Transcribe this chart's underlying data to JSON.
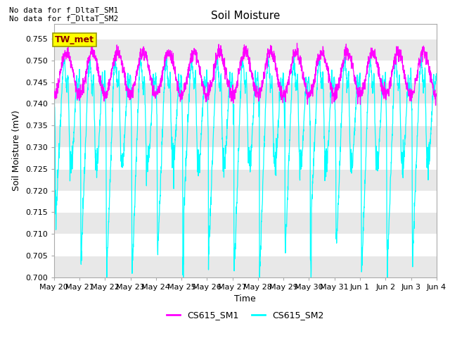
{
  "title": "Soil Moisture",
  "ylabel": "Soil Moisture (mV)",
  "xlabel": "Time",
  "ylim": [
    0.7,
    0.7585
  ],
  "yticks": [
    0.7,
    0.705,
    0.71,
    0.715,
    0.72,
    0.725,
    0.73,
    0.735,
    0.74,
    0.745,
    0.75,
    0.755
  ],
  "color_sm1": "#FF00FF",
  "color_sm2": "#00FFFF",
  "legend_labels": [
    "CS615_SM1",
    "CS615_SM2"
  ],
  "no_data_text1": "No data for f_DltaT_SM1",
  "no_data_text2": "No data for f_DltaT_SM2",
  "tw_met_label": "TW_met",
  "fig_bg": "#FFFFFF",
  "plot_bg": "#FFFFFF",
  "band_color": "#E8E8E8",
  "xtick_labels": [
    "May 20",
    "May 21",
    "May 22",
    "May 23",
    "May 24",
    "May 25",
    "May 26",
    "May 27",
    "May 28",
    "May 29",
    "May 30",
    "May 31",
    "Jun 1",
    "Jun 2",
    "Jun 3",
    "Jun 4"
  ],
  "title_fontsize": 11,
  "label_fontsize": 9,
  "tick_fontsize": 8
}
